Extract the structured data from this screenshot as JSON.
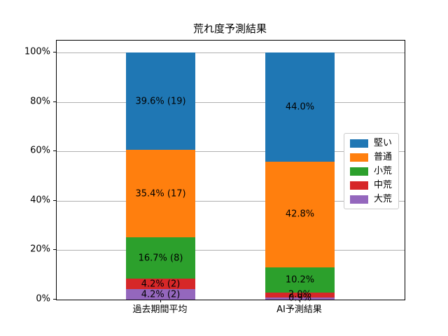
{
  "figure": {
    "background": "#ffffff"
  },
  "chart_data": {
    "type": "bar",
    "variant": "stacked-vertical",
    "title": "荒れ度予測結果",
    "xlabel": "",
    "ylabel": "",
    "categories": [
      "過去期間平均",
      "AI予測結果"
    ],
    "series": [
      {
        "name": "堅い",
        "color": "#1f77b4",
        "values": [
          39.6,
          44.0
        ],
        "labels": [
          "39.6% (19)",
          "44.0%"
        ]
      },
      {
        "name": "普通",
        "color": "#ff7f0e",
        "values": [
          35.4,
          42.8
        ],
        "labels": [
          "35.4% (17)",
          "42.8%"
        ]
      },
      {
        "name": "小荒",
        "color": "#2ca02c",
        "values": [
          16.7,
          10.2
        ],
        "labels": [
          "16.7% (8)",
          "10.2%"
        ]
      },
      {
        "name": "中荒",
        "color": "#d62728",
        "values": [
          4.2,
          2.0
        ],
        "labels": [
          "4.2% (2)",
          "2.0%"
        ]
      },
      {
        "name": "大荒",
        "color": "#9467bd",
        "values": [
          4.2,
          0.9
        ],
        "labels": [
          "4.2% (2)",
          "0.9%"
        ]
      }
    ],
    "ylim": [
      0,
      100
    ],
    "yticks": [
      {
        "pct": 0,
        "label": "0%"
      },
      {
        "pct": 20,
        "label": "20%"
      },
      {
        "pct": 40,
        "label": "40%"
      },
      {
        "pct": 60,
        "label": "60%"
      },
      {
        "pct": 80,
        "label": "80%"
      },
      {
        "pct": 100,
        "label": "100%"
      }
    ],
    "grid": true,
    "legend_position": "center-right",
    "gridline_color": "#b0b0b0"
  }
}
